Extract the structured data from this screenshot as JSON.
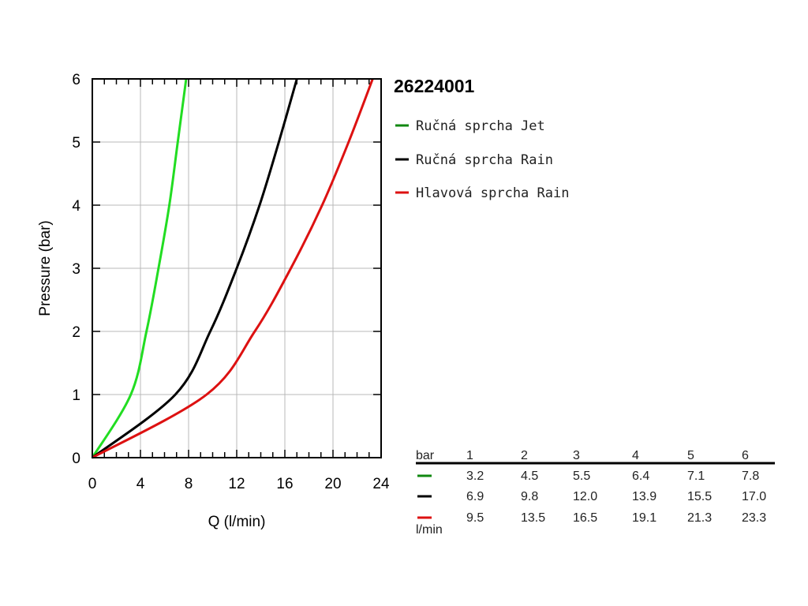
{
  "chart_data": {
    "type": "line",
    "title": "26224001",
    "xlabel": "Q (l/min)",
    "ylabel": "Pressure (bar)",
    "xlim": [
      0,
      24
    ],
    "ylim": [
      0,
      6
    ],
    "x_ticks": [
      "0",
      "4",
      "8",
      "12",
      "16",
      "20",
      "24"
    ],
    "y_ticks": [
      "0",
      "1",
      "2",
      "3",
      "4",
      "5",
      "6"
    ],
    "grid": true,
    "legend_position": "right",
    "series": [
      {
        "name": "Ručná sprcha Jet",
        "color": "#22dd22",
        "legend_color": "#118811",
        "points": [
          [
            0,
            0
          ],
          [
            3.2,
            1
          ],
          [
            4.5,
            2
          ],
          [
            5.5,
            3
          ],
          [
            6.4,
            4
          ],
          [
            7.1,
            5
          ],
          [
            7.8,
            6
          ]
        ]
      },
      {
        "name": "Ručná sprcha Rain",
        "color": "#000000",
        "legend_color": "#000000",
        "points": [
          [
            0,
            0
          ],
          [
            6.9,
            1
          ],
          [
            9.8,
            2
          ],
          [
            12.0,
            3
          ],
          [
            13.9,
            4
          ],
          [
            15.5,
            5
          ],
          [
            17.0,
            6
          ]
        ]
      },
      {
        "name": "Hlavová sprcha Rain",
        "color": "#dd1111",
        "legend_color": "#dd1111",
        "points": [
          [
            0,
            0
          ],
          [
            9.5,
            1
          ],
          [
            13.5,
            2
          ],
          [
            16.5,
            3
          ],
          [
            19.1,
            4
          ],
          [
            21.3,
            5
          ],
          [
            23.3,
            6
          ]
        ]
      }
    ],
    "table": {
      "header_label": "bar",
      "unit_label": "l/min",
      "pressures": [
        "1",
        "2",
        "3",
        "4",
        "5",
        "6"
      ],
      "rows": [
        {
          "color": "#118811",
          "values": [
            "3.2",
            "4.5",
            "5.5",
            "6.4",
            "7.1",
            "7.8"
          ]
        },
        {
          "color": "#000000",
          "values": [
            "6.9",
            "9.8",
            "12.0",
            "13.9",
            "15.5",
            "17.0"
          ]
        },
        {
          "color": "#dd1111",
          "values": [
            "9.5",
            "13.5",
            "16.5",
            "19.1",
            "21.3",
            "23.3"
          ]
        }
      ]
    }
  }
}
